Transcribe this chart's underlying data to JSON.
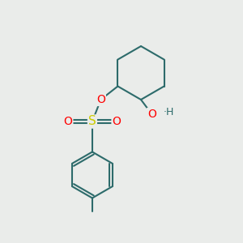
{
  "background_color": "#eaecea",
  "bond_color": "#2d6b6b",
  "bond_width": 1.5,
  "atom_colors": {
    "O": "#ff0000",
    "S": "#cccc00",
    "H": "#2d6b6b",
    "C": "#2d6b6b"
  },
  "figsize": [
    3.0,
    3.0
  ],
  "dpi": 100
}
